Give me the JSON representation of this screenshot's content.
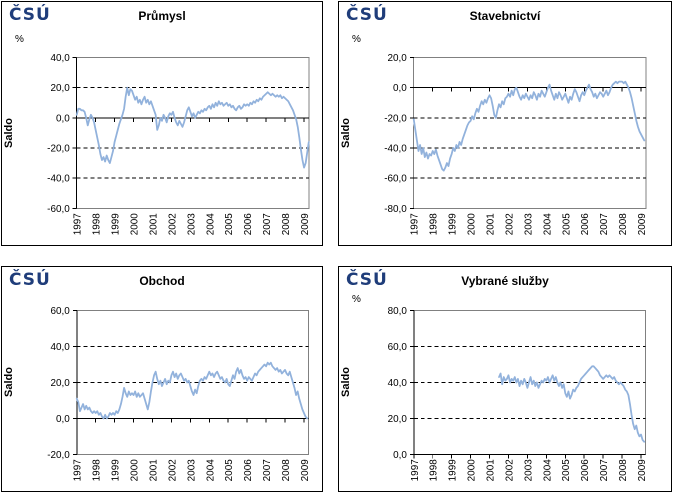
{
  "logo": {
    "text": "ČSÚ"
  },
  "colors": {
    "line": "#92B2DC",
    "logo": "#1F3D7A",
    "plot_border": "#808080",
    "axis": "#000000",
    "background": "#FFFFFF"
  },
  "chart_data": [
    {
      "type": "line",
      "title": "Průmysl",
      "unit_label": "%",
      "ylabel": "Saldo",
      "ylim": [
        -60,
        40
      ],
      "xlim": [
        1997,
        2009.25
      ],
      "grid": "horizontal-dashed",
      "legend": "none",
      "line_color": "#92B2DC",
      "y_ticks": [
        {
          "value": 40,
          "label": "40,0"
        },
        {
          "value": 20,
          "label": "20,0"
        },
        {
          "value": 0,
          "label": "0,0"
        },
        {
          "value": -20,
          "label": "-20,0"
        },
        {
          "value": -40,
          "label": "-40,0"
        },
        {
          "value": -60,
          "label": "-60,0"
        }
      ],
      "x_ticks": [
        {
          "value": 1997,
          "label": "1997"
        },
        {
          "value": 1998,
          "label": "1998"
        },
        {
          "value": 1999,
          "label": "1999"
        },
        {
          "value": 2000,
          "label": "2000"
        },
        {
          "value": 2001,
          "label": "2001"
        },
        {
          "value": 2002,
          "label": "2002"
        },
        {
          "value": 2003,
          "label": "2003"
        },
        {
          "value": 2004,
          "label": "2004"
        },
        {
          "value": 2005,
          "label": "2005"
        },
        {
          "value": 2006,
          "label": "2006"
        },
        {
          "value": 2007,
          "label": "2007"
        },
        {
          "value": 2008,
          "label": "2008"
        },
        {
          "value": 2009,
          "label": "2009"
        }
      ],
      "series": [
        {
          "name": "Saldo",
          "frequency": "monthly",
          "start_year": 1997,
          "start_month": 1,
          "values": [
            2,
            6,
            6,
            5,
            5,
            4,
            0,
            -5,
            -1,
            2,
            0,
            -3,
            -8,
            -13,
            -18,
            -24,
            -28,
            -26,
            -29,
            -25,
            -28,
            -30,
            -26,
            -22,
            -16,
            -12,
            -8,
            -4,
            -1,
            2,
            6,
            14,
            20,
            15,
            19,
            18,
            15,
            12,
            14,
            10,
            12,
            9,
            12,
            14,
            10,
            12,
            9,
            11,
            8,
            5,
            2,
            -8,
            -5,
            0,
            -2,
            2,
            0,
            -3,
            1,
            3,
            2,
            4,
            0,
            -3,
            -5,
            -2,
            -4,
            -6,
            -3,
            1,
            5,
            7,
            4,
            1,
            3,
            0,
            2,
            4,
            3,
            5,
            4,
            6,
            5,
            7,
            8,
            6,
            9,
            7,
            10,
            8,
            11,
            9,
            10,
            8,
            9,
            10,
            8,
            9,
            7,
            8,
            6,
            5,
            7,
            8,
            6,
            7,
            9,
            8,
            9,
            8,
            10,
            9,
            11,
            10,
            12,
            11,
            13,
            12,
            14,
            15,
            16,
            17,
            16,
            15,
            16,
            15,
            14,
            15,
            14,
            15,
            13,
            14,
            13,
            12,
            11,
            9,
            7,
            5,
            2,
            -1,
            -6,
            -13,
            -21,
            -28,
            -33,
            -30,
            -23,
            -16
          ]
        }
      ]
    },
    {
      "type": "line",
      "title": "Stavebnictví",
      "unit_label": "%",
      "ylabel": "Saldo",
      "ylim": [
        -80,
        20
      ],
      "xlim": [
        1997,
        2009.25
      ],
      "grid": "horizontal-dashed",
      "legend": "none",
      "line_color": "#92B2DC",
      "y_ticks": [
        {
          "value": 20,
          "label": "20,0"
        },
        {
          "value": 0,
          "label": "0,0"
        },
        {
          "value": -20,
          "label": "-20,0"
        },
        {
          "value": -40,
          "label": "-40,0"
        },
        {
          "value": -60,
          "label": "-60,0"
        },
        {
          "value": -80,
          "label": "-80,0"
        }
      ],
      "x_ticks": [
        {
          "value": 1997,
          "label": "1997"
        },
        {
          "value": 1998,
          "label": "1998"
        },
        {
          "value": 1999,
          "label": "1999"
        },
        {
          "value": 2000,
          "label": "2000"
        },
        {
          "value": 2001,
          "label": "2001"
        },
        {
          "value": 2002,
          "label": "2002"
        },
        {
          "value": 2003,
          "label": "2003"
        },
        {
          "value": 2004,
          "label": "2004"
        },
        {
          "value": 2005,
          "label": "2005"
        },
        {
          "value": 2006,
          "label": "2006"
        },
        {
          "value": 2007,
          "label": "2007"
        },
        {
          "value": 2008,
          "label": "2008"
        },
        {
          "value": 2009,
          "label": "2009"
        }
      ],
      "series": [
        {
          "name": "Saldo",
          "frequency": "monthly",
          "start_year": 1997,
          "start_month": 1,
          "values": [
            -21,
            -28,
            -35,
            -42,
            -38,
            -44,
            -40,
            -46,
            -43,
            -47,
            -44,
            -45,
            -42,
            -44,
            -41,
            -45,
            -48,
            -51,
            -54,
            -55,
            -53,
            -50,
            -52,
            -47,
            -44,
            -40,
            -42,
            -38,
            -40,
            -36,
            -38,
            -34,
            -31,
            -28,
            -25,
            -23,
            -22,
            -19,
            -21,
            -17,
            -14,
            -16,
            -12,
            -9,
            -11,
            -8,
            -10,
            -7,
            -5,
            -7,
            -12,
            -18,
            -20,
            -15,
            -11,
            -13,
            -9,
            -11,
            -7,
            -6,
            -4,
            -6,
            -2,
            -5,
            -1,
            0,
            -3,
            -6,
            -8,
            -5,
            -7,
            -4,
            -6,
            -8,
            -5,
            -7,
            -3,
            -5,
            -8,
            -4,
            -6,
            -2,
            -4,
            -6,
            -3,
            0,
            2,
            -2,
            -5,
            -8,
            -4,
            -7,
            -3,
            -5,
            -8,
            -6,
            -4,
            -7,
            -10,
            -6,
            -8,
            -4,
            -1,
            -3,
            -6,
            -9,
            -5,
            -3,
            -5,
            -2,
            0,
            2,
            -1,
            -3,
            -6,
            -4,
            -7,
            -5,
            -3,
            -4,
            -6,
            -4,
            -2,
            -5,
            -3,
            0,
            2,
            3,
            4,
            3,
            4,
            4,
            4,
            3,
            4,
            2,
            0,
            -3,
            -7,
            -12,
            -17,
            -22,
            -26,
            -29,
            -31,
            -33,
            -35
          ]
        }
      ]
    },
    {
      "type": "line",
      "title": "Obchod",
      "unit_label": "",
      "ylabel": "Saldo",
      "ylim": [
        -20,
        60
      ],
      "xlim": [
        1997,
        2009.25
      ],
      "grid": "horizontal-dashed",
      "legend": "none",
      "line_color": "#92B2DC",
      "y_ticks": [
        {
          "value": 60,
          "label": "60,0"
        },
        {
          "value": 40,
          "label": "40,0"
        },
        {
          "value": 20,
          "label": "20,0"
        },
        {
          "value": 0,
          "label": "0,0"
        },
        {
          "value": -20,
          "label": "-20,0"
        }
      ],
      "x_ticks": [
        {
          "value": 1997,
          "label": "1997"
        },
        {
          "value": 1998,
          "label": "1998"
        },
        {
          "value": 1999,
          "label": "1999"
        },
        {
          "value": 2000,
          "label": "2000"
        },
        {
          "value": 2001,
          "label": "2001"
        },
        {
          "value": 2002,
          "label": "2002"
        },
        {
          "value": 2003,
          "label": "2003"
        },
        {
          "value": 2004,
          "label": "2004"
        },
        {
          "value": 2005,
          "label": "2005"
        },
        {
          "value": 2006,
          "label": "2006"
        },
        {
          "value": 2007,
          "label": "2007"
        },
        {
          "value": 2008,
          "label": "2008"
        },
        {
          "value": 2009,
          "label": "2009"
        }
      ],
      "series": [
        {
          "name": "Saldo",
          "frequency": "monthly",
          "start_year": 1997,
          "start_month": 1,
          "values": [
            11,
            9,
            4,
            6,
            8,
            5,
            7,
            5,
            6,
            4,
            3,
            4,
            3,
            4,
            2,
            3,
            1,
            0,
            2,
            0,
            1,
            3,
            2,
            3,
            2,
            4,
            3,
            5,
            8,
            12,
            17,
            14,
            12,
            15,
            13,
            14,
            13,
            15,
            12,
            14,
            12,
            13,
            14,
            11,
            8,
            5,
            9,
            15,
            20,
            24,
            26,
            22,
            19,
            21,
            18,
            20,
            22,
            19,
            21,
            20,
            24,
            26,
            23,
            25,
            22,
            24,
            25,
            23,
            21,
            22,
            20,
            21,
            18,
            15,
            13,
            16,
            14,
            18,
            21,
            22,
            21,
            23,
            22,
            24,
            26,
            24,
            25,
            23,
            25,
            26,
            24,
            22,
            23,
            21,
            20,
            22,
            19,
            18,
            21,
            24,
            22,
            26,
            28,
            25,
            27,
            24,
            22,
            23,
            21,
            23,
            22,
            21,
            23,
            25,
            24,
            26,
            27,
            28,
            29,
            30,
            29,
            31,
            30,
            31,
            29,
            28,
            27,
            28,
            26,
            27,
            25,
            26,
            27,
            25,
            24,
            26,
            23,
            20,
            17,
            13,
            15,
            11,
            8,
            5,
            3,
            1,
            0
          ]
        }
      ]
    },
    {
      "type": "line",
      "title": "Vybrané služby",
      "unit_label": "%",
      "ylabel": "Saldo",
      "ylim": [
        0,
        80
      ],
      "xlim": [
        1997,
        2009.25
      ],
      "grid": "horizontal-dashed",
      "legend": "none",
      "line_color": "#92B2DC",
      "y_ticks": [
        {
          "value": 80,
          "label": "80,0"
        },
        {
          "value": 60,
          "label": "60,0"
        },
        {
          "value": 40,
          "label": "40,0"
        },
        {
          "value": 20,
          "label": "20,0"
        },
        {
          "value": 0,
          "label": "0,0"
        }
      ],
      "x_ticks": [
        {
          "value": 1997,
          "label": "1997"
        },
        {
          "value": 1998,
          "label": "1998"
        },
        {
          "value": 1999,
          "label": "1999"
        },
        {
          "value": 2000,
          "label": "2000"
        },
        {
          "value": 2001,
          "label": "2001"
        },
        {
          "value": 2002,
          "label": "2002"
        },
        {
          "value": 2003,
          "label": "2003"
        },
        {
          "value": 2004,
          "label": "2004"
        },
        {
          "value": 2005,
          "label": "2005"
        },
        {
          "value": 2006,
          "label": "2006"
        },
        {
          "value": 2007,
          "label": "2007"
        },
        {
          "value": 2008,
          "label": "2008"
        },
        {
          "value": 2009,
          "label": "2009"
        }
      ],
      "series": [
        {
          "name": "Saldo",
          "frequency": "monthly",
          "start_year": 2001,
          "start_month": 7,
          "values": [
            43,
            45,
            39,
            43,
            41,
            42,
            44,
            40,
            42,
            41,
            43,
            40,
            42,
            38,
            41,
            39,
            42,
            40,
            37,
            40,
            43,
            39,
            41,
            38,
            40,
            37,
            39,
            41,
            40,
            42,
            41,
            43,
            40,
            42,
            44,
            41,
            43,
            40,
            38,
            40,
            37,
            39,
            34,
            32,
            35,
            31,
            33,
            36,
            35,
            37,
            38,
            40,
            42,
            43,
            44,
            45,
            46,
            47,
            48,
            49,
            49,
            48,
            47,
            46,
            44,
            43,
            42,
            43,
            44,
            43,
            44,
            43,
            42,
            43,
            41,
            40,
            39,
            40,
            39,
            38,
            36,
            35,
            33,
            28,
            22,
            17,
            14,
            16,
            12,
            10,
            11,
            8,
            7
          ]
        }
      ]
    }
  ]
}
